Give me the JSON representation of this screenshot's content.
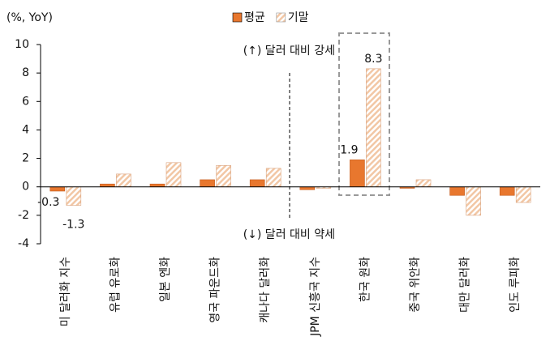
{
  "chart_data": {
    "type": "bar",
    "y_label": "(%, YoY)",
    "categories": [
      "미 달러화 지수",
      "유럽 유로화",
      "일본 엔화",
      "영국 파운드화",
      "캐나다 달러화",
      "JPM 신흥국 지수",
      "한국 원화",
      "중국 위안화",
      "대만 달러화",
      "인도 루피화"
    ],
    "series": [
      {
        "name": "평균",
        "color": "#e8772e",
        "values": [
          -0.3,
          0.2,
          0.2,
          0.5,
          0.5,
          -0.2,
          1.9,
          -0.1,
          -0.6,
          -0.6
        ],
        "value_labels": [
          "-0.3",
          null,
          null,
          null,
          null,
          null,
          "1.9",
          null,
          null,
          null
        ]
      },
      {
        "name": "기말",
        "color": "#f2c7a5",
        "values": [
          -1.3,
          0.9,
          1.7,
          1.5,
          1.3,
          -0.1,
          8.3,
          0.5,
          -2.0,
          -1.1
        ],
        "value_labels": [
          "-1.3",
          null,
          null,
          null,
          null,
          null,
          "8.3",
          null,
          null,
          null
        ]
      }
    ],
    "annotations": [
      "(↑) 달러 대비 강세",
      "(↓) 달러 대비 약세"
    ],
    "ylim": [
      -4,
      10
    ],
    "yticks": [
      -4,
      -2,
      0,
      2,
      4,
      6,
      8,
      10
    ],
    "grid": false,
    "legend": "top"
  }
}
